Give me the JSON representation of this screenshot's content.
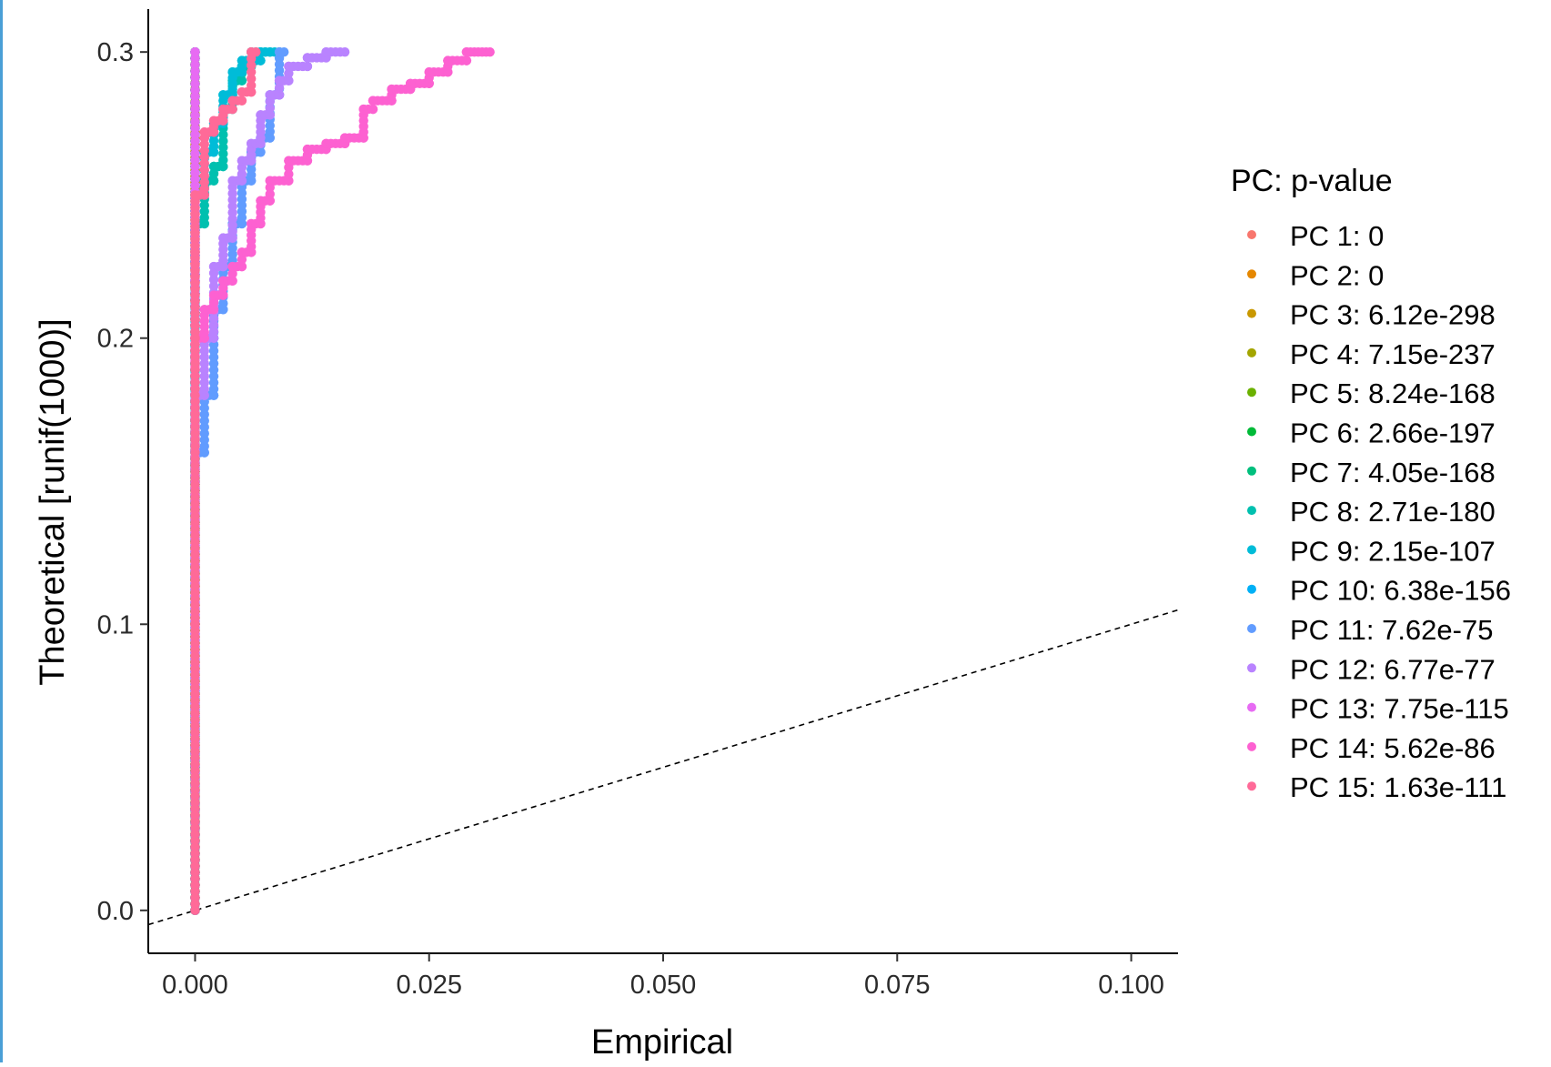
{
  "chart_data": {
    "type": "scatter",
    "title": "",
    "xlabel": "Empirical",
    "ylabel": "Theoretical [runif(1000)]",
    "xlim": [
      -0.005,
      0.105
    ],
    "ylim": [
      -0.015,
      0.315
    ],
    "xticks": [
      0.0,
      0.025,
      0.05,
      0.075,
      0.1
    ],
    "xtick_labels": [
      "0.000",
      "0.025",
      "0.050",
      "0.075",
      "0.100"
    ],
    "yticks": [
      0.0,
      0.1,
      0.2,
      0.3
    ],
    "ytick_labels": [
      "0.0",
      "0.1",
      "0.2",
      "0.3"
    ],
    "grid": false,
    "reference_line": {
      "style": "dashed",
      "slope": 1,
      "intercept": 0
    },
    "legend": {
      "title": "PC: p-value",
      "position": "right"
    },
    "series": [
      {
        "name": "PC 1: 0",
        "color": "#F8766D",
        "points": [
          [
            0,
            0
          ],
          [
            0,
            0.05
          ],
          [
            0,
            0.1
          ],
          [
            0,
            0.15
          ],
          [
            0,
            0.2
          ],
          [
            0,
            0.25
          ],
          [
            0,
            0.3
          ]
        ]
      },
      {
        "name": "PC 2: 0",
        "color": "#E58700",
        "points": [
          [
            0,
            0
          ],
          [
            0,
            0.05
          ],
          [
            0,
            0.1
          ],
          [
            0,
            0.15
          ],
          [
            0,
            0.2
          ],
          [
            0,
            0.25
          ],
          [
            0,
            0.3
          ]
        ]
      },
      {
        "name": "PC 3: 6.12e-298",
        "color": "#C99800",
        "points": [
          [
            0,
            0
          ],
          [
            0,
            0.1
          ],
          [
            0,
            0.2
          ],
          [
            0,
            0.3
          ]
        ]
      },
      {
        "name": "PC 4: 7.15e-237",
        "color": "#A3A500",
        "points": [
          [
            0,
            0
          ],
          [
            0,
            0.1
          ],
          [
            0,
            0.2
          ],
          [
            0,
            0.3
          ]
        ]
      },
      {
        "name": "PC 5: 8.24e-168",
        "color": "#6BB100",
        "points": [
          [
            0,
            0
          ],
          [
            0,
            0.1
          ],
          [
            0,
            0.2
          ],
          [
            0,
            0.3
          ]
        ]
      },
      {
        "name": "PC 6: 2.66e-197",
        "color": "#00BA38",
        "points": [
          [
            0,
            0
          ],
          [
            0,
            0.1
          ],
          [
            0,
            0.2
          ],
          [
            0,
            0.3
          ]
        ]
      },
      {
        "name": "PC 7: 4.05e-168",
        "color": "#00BF7D",
        "points": [
          [
            0,
            0
          ],
          [
            0,
            0.1
          ],
          [
            0,
            0.2
          ],
          [
            0,
            0.3
          ]
        ]
      },
      {
        "name": "PC 8: 2.71e-180",
        "color": "#00C0AF",
        "points": [
          [
            0,
            0
          ],
          [
            0,
            0.22
          ],
          [
            0.001,
            0.24
          ],
          [
            0.002,
            0.255
          ],
          [
            0.003,
            0.26
          ],
          [
            0.004,
            0.28
          ],
          [
            0.005,
            0.29
          ],
          [
            0.006,
            0.295
          ],
          [
            0.008,
            0.3
          ]
        ]
      },
      {
        "name": "PC 9: 2.15e-107",
        "color": "#00BCD8",
        "points": [
          [
            0,
            0
          ],
          [
            0,
            0.23
          ],
          [
            0.001,
            0.25
          ],
          [
            0.002,
            0.265
          ],
          [
            0.003,
            0.275
          ],
          [
            0.004,
            0.285
          ],
          [
            0.005,
            0.293
          ],
          [
            0.007,
            0.297
          ],
          [
            0.009,
            0.3
          ]
        ]
      },
      {
        "name": "PC 10: 6.38e-156",
        "color": "#00B0F6",
        "points": [
          [
            0,
            0
          ],
          [
            0,
            0.2
          ],
          [
            0,
            0.3
          ]
        ]
      },
      {
        "name": "PC 11: 7.62e-75",
        "color": "#619CFF",
        "points": [
          [
            0,
            0.155
          ],
          [
            0.001,
            0.16
          ],
          [
            0.002,
            0.18
          ],
          [
            0.002,
            0.2
          ],
          [
            0.003,
            0.21
          ],
          [
            0.004,
            0.225
          ],
          [
            0.005,
            0.24
          ],
          [
            0.006,
            0.255
          ],
          [
            0.007,
            0.265
          ],
          [
            0.008,
            0.27
          ],
          [
            0.009,
            0.285
          ],
          [
            0.0095,
            0.3
          ]
        ]
      },
      {
        "name": "PC 12: 6.77e-77",
        "color": "#B983FF",
        "points": [
          [
            0,
            0.16
          ],
          [
            0.001,
            0.18
          ],
          [
            0.002,
            0.2
          ],
          [
            0.003,
            0.225
          ],
          [
            0.004,
            0.235
          ],
          [
            0.005,
            0.255
          ],
          [
            0.006,
            0.262
          ],
          [
            0.007,
            0.268
          ],
          [
            0.008,
            0.278
          ],
          [
            0.009,
            0.285
          ],
          [
            0.01,
            0.29
          ],
          [
            0.012,
            0.295
          ],
          [
            0.014,
            0.298
          ],
          [
            0.016,
            0.3
          ]
        ]
      },
      {
        "name": "PC 13: 7.75e-115",
        "color": "#E76BF3",
        "points": [
          [
            0,
            0
          ],
          [
            0,
            0.22
          ],
          [
            0,
            0.3
          ]
        ]
      },
      {
        "name": "PC 14: 5.62e-86",
        "color": "#FD61D1",
        "points": [
          [
            0,
            0.19
          ],
          [
            0.001,
            0.2
          ],
          [
            0.002,
            0.21
          ],
          [
            0.003,
            0.215
          ],
          [
            0.004,
            0.22
          ],
          [
            0.005,
            0.225
          ],
          [
            0.006,
            0.23
          ],
          [
            0.007,
            0.24
          ],
          [
            0.008,
            0.248
          ],
          [
            0.01,
            0.255
          ],
          [
            0.012,
            0.262
          ],
          [
            0.014,
            0.266
          ],
          [
            0.016,
            0.268
          ],
          [
            0.018,
            0.27
          ],
          [
            0.019,
            0.28
          ],
          [
            0.021,
            0.283
          ],
          [
            0.023,
            0.287
          ],
          [
            0.025,
            0.289
          ],
          [
            0.027,
            0.293
          ],
          [
            0.029,
            0.297
          ],
          [
            0.0315,
            0.3
          ]
        ]
      },
      {
        "name": "PC 15: 1.63e-111",
        "color": "#FF6A98",
        "points": [
          [
            0,
            0
          ],
          [
            0,
            0.1
          ],
          [
            0,
            0.2
          ],
          [
            0,
            0.23
          ],
          [
            0.001,
            0.25
          ],
          [
            0.001,
            0.27
          ],
          [
            0.002,
            0.272
          ],
          [
            0.003,
            0.276
          ],
          [
            0.004,
            0.28
          ],
          [
            0.005,
            0.283
          ],
          [
            0.006,
            0.286
          ],
          [
            0.0065,
            0.3
          ]
        ]
      }
    ]
  }
}
